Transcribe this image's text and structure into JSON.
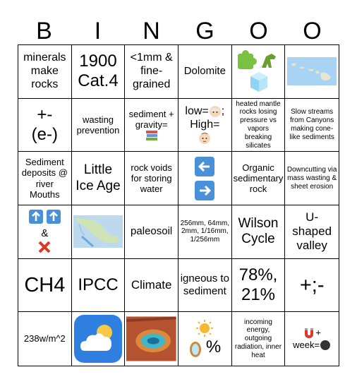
{
  "header": {
    "letters": [
      "B",
      "I",
      "N",
      "G",
      "O",
      "O"
    ]
  },
  "cells": {
    "r1c1": "minerals make rocks",
    "r1c2": "1900 Cat.4",
    "r1c3": "<1mm & fine-grained",
    "r1c4": "Dolomite",
    "r1c5": {
      "icons": [
        "puzzle-icon",
        "dinosaur-icon",
        "ice-cube-icon"
      ]
    },
    "r1c6": {
      "image": "hawaii-islands-map"
    },
    "r2c1_top": "+-",
    "r2c1_bottom": "(e-)",
    "r2c2": "wasting prevention",
    "r2c3": "sediment + gravity=",
    "r2c3_icon": "books-icon",
    "r2c4_line1": "low=",
    "r2c4_line1_end": ";",
    "r2c4_line2": "High=",
    "r2c5": "heated mantle rocks losing pressure vs vapors breaking silicates",
    "r2c6": "Slow streams from Canyons making cone-like sediments",
    "r3c1": "Sediment deposits @ river Mouths",
    "r3c2": "Little Ice Age",
    "r3c3": "rock voids for storing water",
    "r3c4": {
      "icons": [
        "left-arrow-icon",
        "right-arrow-icon"
      ]
    },
    "r3c5": "Organic sedimentary rock",
    "r3c6": "Downcutting via mass wasting & sheet erosion",
    "r4c1_amp": "&",
    "r4c2": {
      "image": "mexico-map"
    },
    "r4c3": "paleosoil",
    "r4c4": "256mm, 64mm, 2mm, 1/16mm, 1/256mm",
    "r4c5": "Wilson Cycle",
    "r4c6": "U-shaped valley",
    "r5c1": "CH4",
    "r5c2": "IPCC",
    "r5c3": "Climate",
    "r5c4": "igneous to sediment",
    "r5c5": "78%, 21%",
    "r5c6": "+;-",
    "r6c1": "238w/m^2",
    "r6c2": {
      "image": "weather-cloud-sun-icon"
    },
    "r6c3": {
      "image": "hot-spring-aerial-photo"
    },
    "r6c4_pct": "%",
    "r6c5": "incoming energy, outgoing radiation, inner heat",
    "r6c6_plus": "+",
    "r6c6_word": "week="
  }
}
